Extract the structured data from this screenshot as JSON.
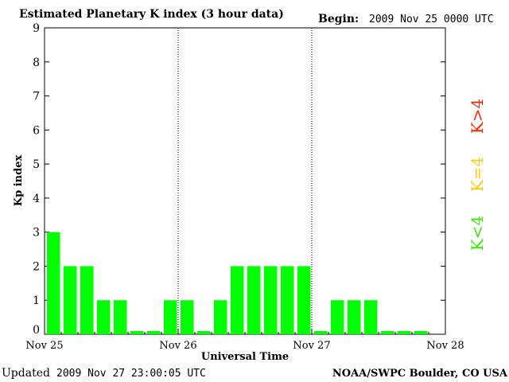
{
  "header": {
    "title": "Estimated Planetary K index (3 hour data)",
    "begin_label": "Begin:",
    "begin_value": "2009 Nov 25 0000 UTC"
  },
  "footer": {
    "updated_label": "Updated",
    "updated_value": "2009 Nov 27 23:00:05 UTC",
    "source": "NOAA/SWPC Boulder, CO USA"
  },
  "legend": [
    {
      "label": "K>4",
      "color": "#ff2200"
    },
    {
      "label": "K=4",
      "color": "#ffcc00"
    },
    {
      "label": "K<4",
      "color": "#33ee00"
    }
  ],
  "chart_data": {
    "type": "bar",
    "title": "Estimated Planetary K index (3 hour data)",
    "xlabel": "Universal Time",
    "ylabel": "Kp index",
    "ylim": [
      0,
      9
    ],
    "yticks": [
      "0",
      "1",
      "2",
      "3",
      "4",
      "5",
      "6",
      "7",
      "8",
      "9"
    ],
    "day_ticks": [
      "Nov 25",
      "Nov 26",
      "Nov 27",
      "Nov 28"
    ],
    "interval_hours": 3,
    "bar_color": "#00ff00",
    "values": [
      3,
      2,
      2,
      1,
      1,
      0,
      0,
      1,
      1,
      0,
      1,
      2,
      2,
      2,
      2,
      2,
      0,
      1,
      1,
      1,
      0,
      0,
      0
    ]
  }
}
